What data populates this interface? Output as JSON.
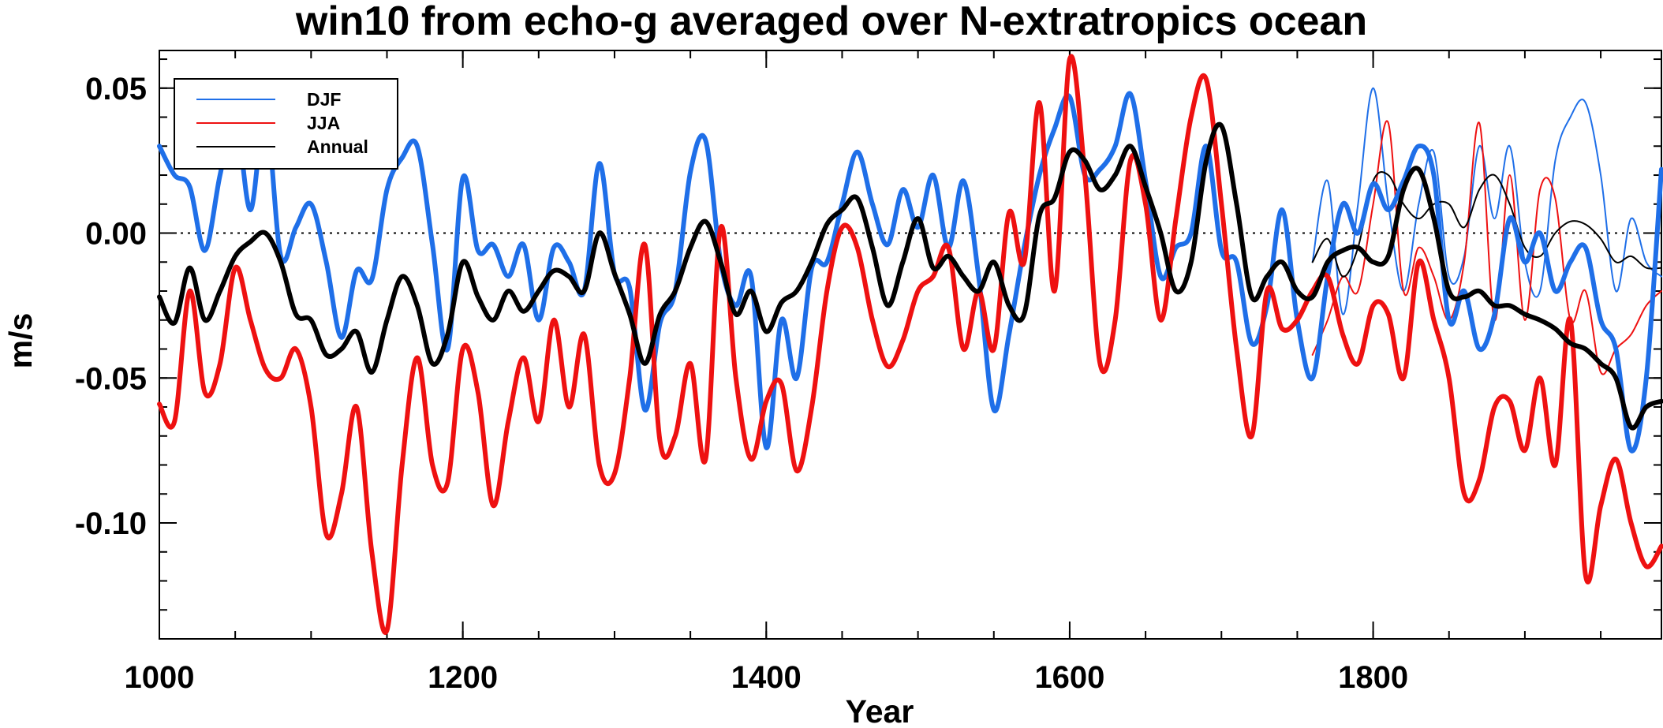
{
  "chart_data": {
    "type": "line",
    "title": "win10 from echo-g averaged over N-extratropics ocean",
    "xlabel": "Year",
    "ylabel": "m/s",
    "xlim": [
      1000,
      1990
    ],
    "ylim": [
      -0.14,
      0.063
    ],
    "xticks": [
      1000,
      1200,
      1400,
      1600,
      1800
    ],
    "xtick_labels": [
      "1000",
      "1200",
      "1400",
      "1600",
      "1800"
    ],
    "xminor_step": 50,
    "yticks": [
      0.05,
      0.0,
      -0.05,
      -0.1
    ],
    "ytick_labels": [
      "0.05",
      "0.00",
      "-0.05",
      "-0.10"
    ],
    "yminor_step": 0.01,
    "zero_line": true,
    "legend": {
      "placement": "top-left",
      "entries": [
        "DJF",
        "JJA",
        "Annual"
      ]
    },
    "colors": {
      "DJF": "#1f6fe8",
      "JJA": "#ee1111",
      "Annual": "#000000"
    },
    "series": [
      {
        "name": "DJF",
        "style": "thick",
        "x": [
          1000,
          1010,
          1020,
          1030,
          1040,
          1050,
          1060,
          1070,
          1080,
          1090,
          1100,
          1110,
          1120,
          1130,
          1140,
          1150,
          1160,
          1170,
          1180,
          1190,
          1200,
          1210,
          1220,
          1230,
          1240,
          1250,
          1260,
          1270,
          1280,
          1290,
          1300,
          1310,
          1320,
          1330,
          1340,
          1350,
          1360,
          1370,
          1380,
          1390,
          1400,
          1410,
          1420,
          1430,
          1440,
          1450,
          1460,
          1470,
          1480,
          1490,
          1500,
          1510,
          1520,
          1530,
          1540,
          1550,
          1560,
          1570,
          1580,
          1590,
          1600,
          1610,
          1620,
          1630,
          1640,
          1650,
          1660,
          1670,
          1680,
          1690,
          1700,
          1710,
          1720,
          1730,
          1740,
          1750,
          1760,
          1770,
          1780,
          1790,
          1800,
          1810,
          1820,
          1830,
          1840,
          1850,
          1860,
          1870,
          1880,
          1890,
          1900,
          1910,
          1920,
          1930,
          1940,
          1950,
          1960,
          1970,
          1980,
          1990
        ],
        "values": [
          0.03,
          0.02,
          0.016,
          -0.006,
          0.02,
          0.041,
          0.008,
          0.042,
          -0.008,
          0.002,
          0.01,
          -0.01,
          -0.036,
          -0.013,
          -0.016,
          0.015,
          0.026,
          0.03,
          -0.004,
          -0.04,
          0.019,
          -0.006,
          -0.004,
          -0.015,
          -0.004,
          -0.03,
          -0.005,
          -0.01,
          -0.02,
          0.024,
          -0.014,
          -0.019,
          -0.061,
          -0.031,
          -0.02,
          0.021,
          0.032,
          -0.01,
          -0.025,
          -0.015,
          -0.074,
          -0.03,
          -0.05,
          -0.012,
          -0.01,
          0.01,
          0.028,
          0.01,
          -0.004,
          0.015,
          0.002,
          0.02,
          -0.005,
          0.018,
          -0.015,
          -0.061,
          -0.035,
          -0.005,
          0.02,
          0.036,
          0.047,
          0.02,
          0.022,
          0.03,
          0.048,
          0.018,
          -0.015,
          -0.005,
          0.0,
          0.03,
          -0.006,
          -0.01,
          -0.038,
          -0.025,
          0.008,
          -0.03,
          -0.05,
          -0.015,
          0.01,
          0.0,
          0.017,
          0.008,
          0.018,
          0.03,
          0.02,
          -0.03,
          -0.02,
          -0.04,
          -0.028,
          0.005,
          -0.01,
          0.0,
          -0.02,
          -0.01,
          -0.005,
          -0.03,
          -0.04,
          -0.075,
          -0.05,
          0.022
        ]
      },
      {
        "name": "JJA",
        "style": "thick",
        "x": [
          1000,
          1010,
          1020,
          1030,
          1040,
          1050,
          1060,
          1070,
          1080,
          1090,
          1100,
          1110,
          1120,
          1130,
          1140,
          1150,
          1160,
          1170,
          1180,
          1190,
          1200,
          1210,
          1220,
          1230,
          1240,
          1250,
          1260,
          1270,
          1280,
          1290,
          1300,
          1310,
          1320,
          1330,
          1340,
          1350,
          1360,
          1370,
          1380,
          1390,
          1400,
          1410,
          1420,
          1430,
          1440,
          1450,
          1460,
          1470,
          1480,
          1490,
          1500,
          1510,
          1520,
          1530,
          1540,
          1550,
          1560,
          1570,
          1580,
          1590,
          1600,
          1610,
          1620,
          1630,
          1640,
          1650,
          1660,
          1670,
          1680,
          1690,
          1700,
          1710,
          1720,
          1730,
          1740,
          1750,
          1760,
          1770,
          1780,
          1790,
          1800,
          1810,
          1820,
          1830,
          1840,
          1850,
          1860,
          1870,
          1880,
          1890,
          1900,
          1910,
          1920,
          1930,
          1940,
          1950,
          1960,
          1970,
          1980,
          1990
        ],
        "values": [
          -0.059,
          -0.065,
          -0.02,
          -0.055,
          -0.045,
          -0.012,
          -0.03,
          -0.047,
          -0.05,
          -0.04,
          -0.06,
          -0.104,
          -0.09,
          -0.06,
          -0.11,
          -0.137,
          -0.08,
          -0.043,
          -0.08,
          -0.086,
          -0.04,
          -0.055,
          -0.094,
          -0.065,
          -0.043,
          -0.065,
          -0.03,
          -0.06,
          -0.035,
          -0.08,
          -0.083,
          -0.05,
          -0.004,
          -0.072,
          -0.07,
          -0.045,
          -0.078,
          0.002,
          -0.05,
          -0.078,
          -0.058,
          -0.052,
          -0.082,
          -0.06,
          -0.02,
          0.002,
          -0.005,
          -0.03,
          -0.046,
          -0.037,
          -0.02,
          -0.015,
          -0.005,
          -0.04,
          -0.02,
          -0.04,
          0.007,
          -0.01,
          0.045,
          -0.02,
          0.06,
          0.02,
          -0.045,
          -0.03,
          0.025,
          0.01,
          -0.03,
          0.005,
          0.04,
          0.053,
          0.01,
          -0.04,
          -0.07,
          -0.02,
          -0.033,
          -0.03,
          -0.02,
          -0.015,
          -0.035,
          -0.045,
          -0.025,
          -0.028,
          -0.05,
          -0.01,
          -0.03,
          -0.05,
          -0.09,
          -0.085,
          -0.06,
          -0.058,
          -0.075,
          -0.05,
          -0.08,
          -0.03,
          -0.118,
          -0.094,
          -0.078,
          -0.1,
          -0.115,
          -0.108
        ]
      },
      {
        "name": "Annual",
        "style": "thick",
        "x": [
          1000,
          1010,
          1020,
          1030,
          1040,
          1050,
          1060,
          1070,
          1080,
          1090,
          1100,
          1110,
          1120,
          1130,
          1140,
          1150,
          1160,
          1170,
          1180,
          1190,
          1200,
          1210,
          1220,
          1230,
          1240,
          1250,
          1260,
          1270,
          1280,
          1290,
          1300,
          1310,
          1320,
          1330,
          1340,
          1350,
          1360,
          1370,
          1380,
          1390,
          1400,
          1410,
          1420,
          1430,
          1440,
          1450,
          1460,
          1470,
          1480,
          1490,
          1500,
          1510,
          1520,
          1530,
          1540,
          1550,
          1560,
          1570,
          1580,
          1590,
          1600,
          1610,
          1620,
          1630,
          1640,
          1650,
          1660,
          1670,
          1680,
          1690,
          1700,
          1710,
          1720,
          1730,
          1740,
          1750,
          1760,
          1770,
          1780,
          1790,
          1800,
          1810,
          1820,
          1830,
          1840,
          1850,
          1860,
          1870,
          1880,
          1890,
          1900,
          1910,
          1920,
          1930,
          1940,
          1950,
          1960,
          1970,
          1980,
          1990
        ],
        "values": [
          -0.022,
          -0.031,
          -0.012,
          -0.03,
          -0.02,
          -0.008,
          -0.003,
          0.0,
          -0.01,
          -0.028,
          -0.03,
          -0.042,
          -0.04,
          -0.034,
          -0.048,
          -0.03,
          -0.015,
          -0.025,
          -0.045,
          -0.035,
          -0.01,
          -0.022,
          -0.03,
          -0.02,
          -0.027,
          -0.02,
          -0.013,
          -0.015,
          -0.02,
          0.0,
          -0.014,
          -0.028,
          -0.045,
          -0.028,
          -0.02,
          -0.005,
          0.004,
          -0.01,
          -0.028,
          -0.02,
          -0.034,
          -0.024,
          -0.02,
          -0.01,
          0.003,
          0.008,
          0.012,
          -0.005,
          -0.025,
          -0.01,
          0.005,
          -0.012,
          -0.008,
          -0.015,
          -0.02,
          -0.01,
          -0.025,
          -0.028,
          0.006,
          0.012,
          0.028,
          0.025,
          0.015,
          0.02,
          0.03,
          0.016,
          0.0,
          -0.02,
          -0.01,
          0.025,
          0.037,
          0.01,
          -0.022,
          -0.015,
          -0.01,
          -0.02,
          -0.022,
          -0.01,
          -0.006,
          -0.005,
          -0.01,
          -0.008,
          0.015,
          0.022,
          0.005,
          -0.02,
          -0.022,
          -0.02,
          -0.025,
          -0.025,
          -0.028,
          -0.03,
          -0.033,
          -0.038,
          -0.04,
          -0.045,
          -0.05,
          -0.067,
          -0.06,
          -0.058
        ]
      },
      {
        "name": "DJF",
        "style": "thin",
        "x": [
          1760,
          1770,
          1780,
          1790,
          1800,
          1810,
          1820,
          1830,
          1840,
          1850,
          1860,
          1870,
          1880,
          1890,
          1900,
          1910,
          1920,
          1930,
          1940,
          1950,
          1960,
          1970,
          1980,
          1990
        ],
        "values": [
          -0.01,
          0.018,
          -0.028,
          0.01,
          0.05,
          0.01,
          -0.02,
          0.01,
          0.028,
          -0.015,
          -0.008,
          0.03,
          0.005,
          0.03,
          -0.01,
          -0.02,
          0.025,
          0.04,
          0.045,
          0.02,
          -0.02,
          0.005,
          -0.01,
          -0.015
        ]
      },
      {
        "name": "JJA",
        "style": "thin",
        "x": [
          1760,
          1770,
          1780,
          1790,
          1800,
          1810,
          1820,
          1830,
          1840,
          1850,
          1860,
          1870,
          1880,
          1890,
          1900,
          1910,
          1920,
          1930,
          1940,
          1950,
          1960,
          1970,
          1980,
          1990
        ],
        "values": [
          -0.042,
          -0.03,
          -0.015,
          -0.02,
          0.01,
          0.038,
          -0.02,
          -0.005,
          -0.015,
          -0.03,
          -0.01,
          0.038,
          -0.03,
          0.02,
          -0.03,
          0.015,
          0.012,
          -0.03,
          -0.02,
          -0.048,
          -0.04,
          -0.035,
          -0.025,
          -0.02
        ]
      },
      {
        "name": "Annual",
        "style": "thin",
        "x": [
          1760,
          1770,
          1780,
          1790,
          1800,
          1810,
          1820,
          1830,
          1840,
          1850,
          1860,
          1870,
          1880,
          1890,
          1900,
          1910,
          1920,
          1930,
          1940,
          1950,
          1960,
          1970,
          1980,
          1990
        ],
        "values": [
          -0.01,
          -0.002,
          -0.015,
          -0.005,
          0.018,
          0.02,
          0.01,
          0.005,
          0.01,
          0.01,
          0.002,
          0.015,
          0.02,
          0.01,
          -0.005,
          -0.008,
          0.0,
          0.004,
          0.003,
          -0.002,
          -0.01,
          -0.008,
          -0.012,
          -0.012
        ]
      }
    ]
  }
}
